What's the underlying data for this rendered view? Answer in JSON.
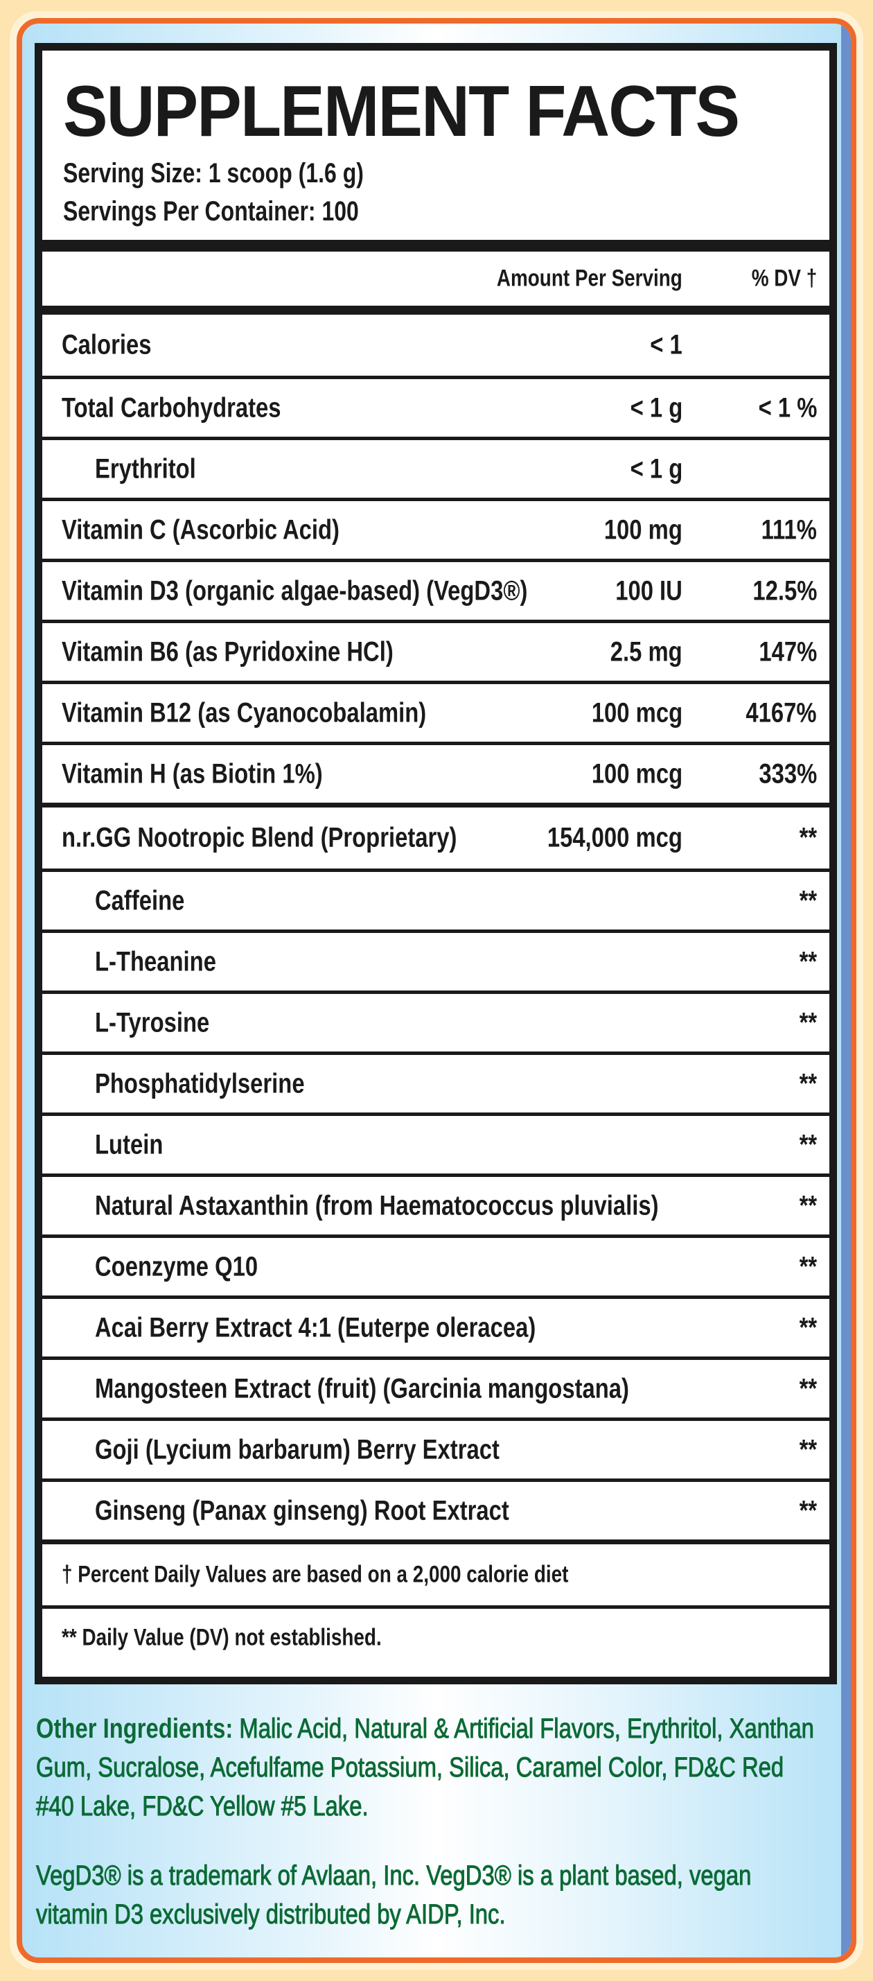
{
  "title": "SUPPLEMENT FACTS",
  "serving_size": "Serving Size: 1 scoop (1.6 g)",
  "servings_per_container": "Servings Per Container: 100",
  "header": {
    "amount": "Amount Per Serving",
    "dv": "% DV †"
  },
  "nutrients": [
    {
      "name": "Calories",
      "amount": "< 1",
      "dv": ""
    },
    {
      "name": "Total Carbohydrates",
      "amount": "< 1 g",
      "dv": "< 1 %"
    },
    {
      "name": "Erythritol",
      "amount": "< 1 g",
      "dv": ""
    },
    {
      "name": "Vitamin C (Ascorbic Acid)",
      "amount": "100 mg",
      "dv": "111%"
    },
    {
      "name": "Vitamin D3 (organic algae-based) (VegD3®)",
      "amount": "100 IU",
      "dv": "12.5%"
    },
    {
      "name": "Vitamin B6 (as Pyridoxine HCl)",
      "amount": "2.5 mg",
      "dv": "147%"
    },
    {
      "name": "Vitamin B12 (as Cyanocobalamin)",
      "amount": "100 mcg",
      "dv": "4167%"
    },
    {
      "name": "Vitamin H (as Biotin 1%)",
      "amount": "100 mcg",
      "dv": "333%"
    }
  ],
  "blend": {
    "name": "n.r.GG Nootropic Blend (Proprietary)",
    "amount": "154,000 mcg",
    "dv": "**",
    "items": [
      {
        "name": "Caffeine",
        "dv": "**"
      },
      {
        "name": "L-Theanine",
        "dv": "**"
      },
      {
        "name": "L-Tyrosine",
        "dv": "**"
      },
      {
        "name": "Phosphatidylserine",
        "dv": "**"
      },
      {
        "name": "Lutein",
        "dv": "**"
      },
      {
        "name": "Natural Astaxanthin (from Haematococcus pluvialis)",
        "dv": "**"
      },
      {
        "name": "Coenzyme Q10",
        "dv": "**"
      },
      {
        "name": "Acai Berry Extract 4:1 (Euterpe oleracea)",
        "dv": "**"
      },
      {
        "name": "Mangosteen Extract (fruit) (Garcinia mangostana)",
        "dv": "**"
      },
      {
        "name": "Goji (Lycium barbarum) Berry Extract",
        "dv": "**"
      },
      {
        "name": "Ginseng (Panax ginseng) Root Extract",
        "dv": "**"
      }
    ]
  },
  "footnotes": [
    "† Percent Daily Values are based on a 2,000 calorie diet",
    "** Daily Value (DV) not established."
  ],
  "other_ingredients": {
    "label": "Other Ingredients:",
    "text": " Malic Acid, Natural & Artificial Flavors, Erythritol, Xanthan Gum, Sucralose, Acefulfame Potassium, Silica, Caramel Color, FD&C Red #40 Lake, FD&C Yellow #5 Lake."
  },
  "trademark": "VegD3® is a trademark of Avlaan, Inc. VegD3® is a plant based, vegan vitamin D3 exclusively distributed by AIDP, Inc.",
  "colors": {
    "text": "#1a1a1a",
    "green": "#0b6a35",
    "orange_border": "#ef6a2a",
    "background": "#b6e2f7"
  }
}
